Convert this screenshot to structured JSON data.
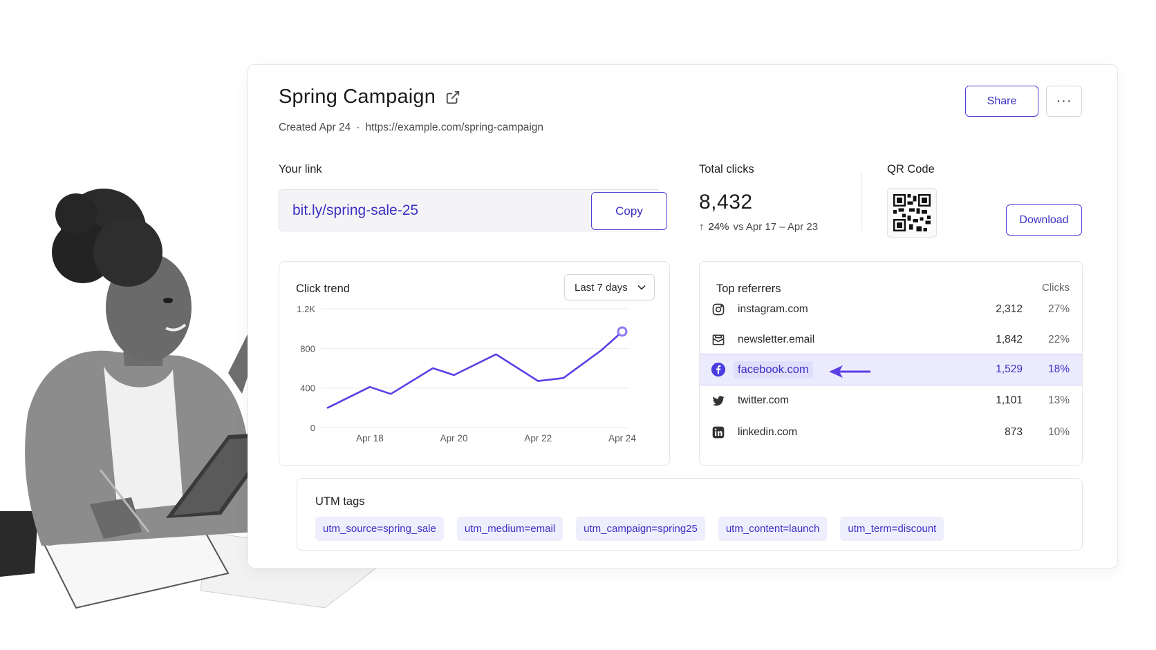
{
  "header": {
    "title": "Spring Campaign",
    "created": "Created Apr 24",
    "separator": "·",
    "destination_url": "https://example.com/spring-campaign",
    "share_label": "Share",
    "more_label": "···"
  },
  "link": {
    "label": "Your link",
    "short_url": "bit.ly/spring-sale-25",
    "copy_label": "Copy"
  },
  "total_clicks": {
    "label": "Total clicks",
    "value": "8,432",
    "arrow": "↑",
    "change": "24%",
    "comparison": "vs Apr 17 – Apr 23"
  },
  "qr": {
    "label": "QR Code",
    "download_label": "Download"
  },
  "trend": {
    "title": "Click trend",
    "range_label": "Last 7 days"
  },
  "chart_data": {
    "type": "line",
    "title": "Click trend",
    "x_tick_labels": [
      "Apr 18",
      "Apr 20",
      "Apr 22",
      "Apr 24"
    ],
    "y_tick_labels": [
      "0",
      "400",
      "800",
      "1.2K"
    ],
    "ylim": [
      0,
      1200
    ],
    "grid": true,
    "accent_color": "#5b3ee6",
    "points": [
      {
        "x": 17,
        "y": 200
      },
      {
        "x": 18,
        "y": 410
      },
      {
        "x": 18.5,
        "y": 340
      },
      {
        "x": 19.5,
        "y": 600
      },
      {
        "x": 20,
        "y": 530
      },
      {
        "x": 21,
        "y": 740
      },
      {
        "x": 22,
        "y": 470
      },
      {
        "x": 22.6,
        "y": 500
      },
      {
        "x": 23.5,
        "y": 780
      },
      {
        "x": 24,
        "y": 970
      }
    ]
  },
  "referrers": {
    "title": "Top referrers",
    "column_label": "Clicks",
    "rows": [
      {
        "name": "instagram.com",
        "clicks": "2,312",
        "pct": "27%",
        "icon": "instagram-icon"
      },
      {
        "name": "newsletter.email",
        "clicks": "1,842",
        "pct": "22%",
        "icon": "newsletter-icon"
      },
      {
        "name": "facebook.com",
        "clicks": "1,529",
        "pct": "18%",
        "icon": "facebook-icon"
      },
      {
        "name": "twitter.com",
        "clicks": "1,101",
        "pct": "13%",
        "icon": "twitter-icon"
      },
      {
        "name": "linkedin.com",
        "clicks": "873",
        "pct": "10%",
        "icon": "linkedin-icon"
      }
    ]
  },
  "utm": {
    "title": "UTM tags",
    "tags": [
      "utm_source=spring_sale",
      "utm_medium=email",
      "utm_campaign=spring25",
      "utm_content=launch",
      "utm_term=discount"
    ]
  }
}
